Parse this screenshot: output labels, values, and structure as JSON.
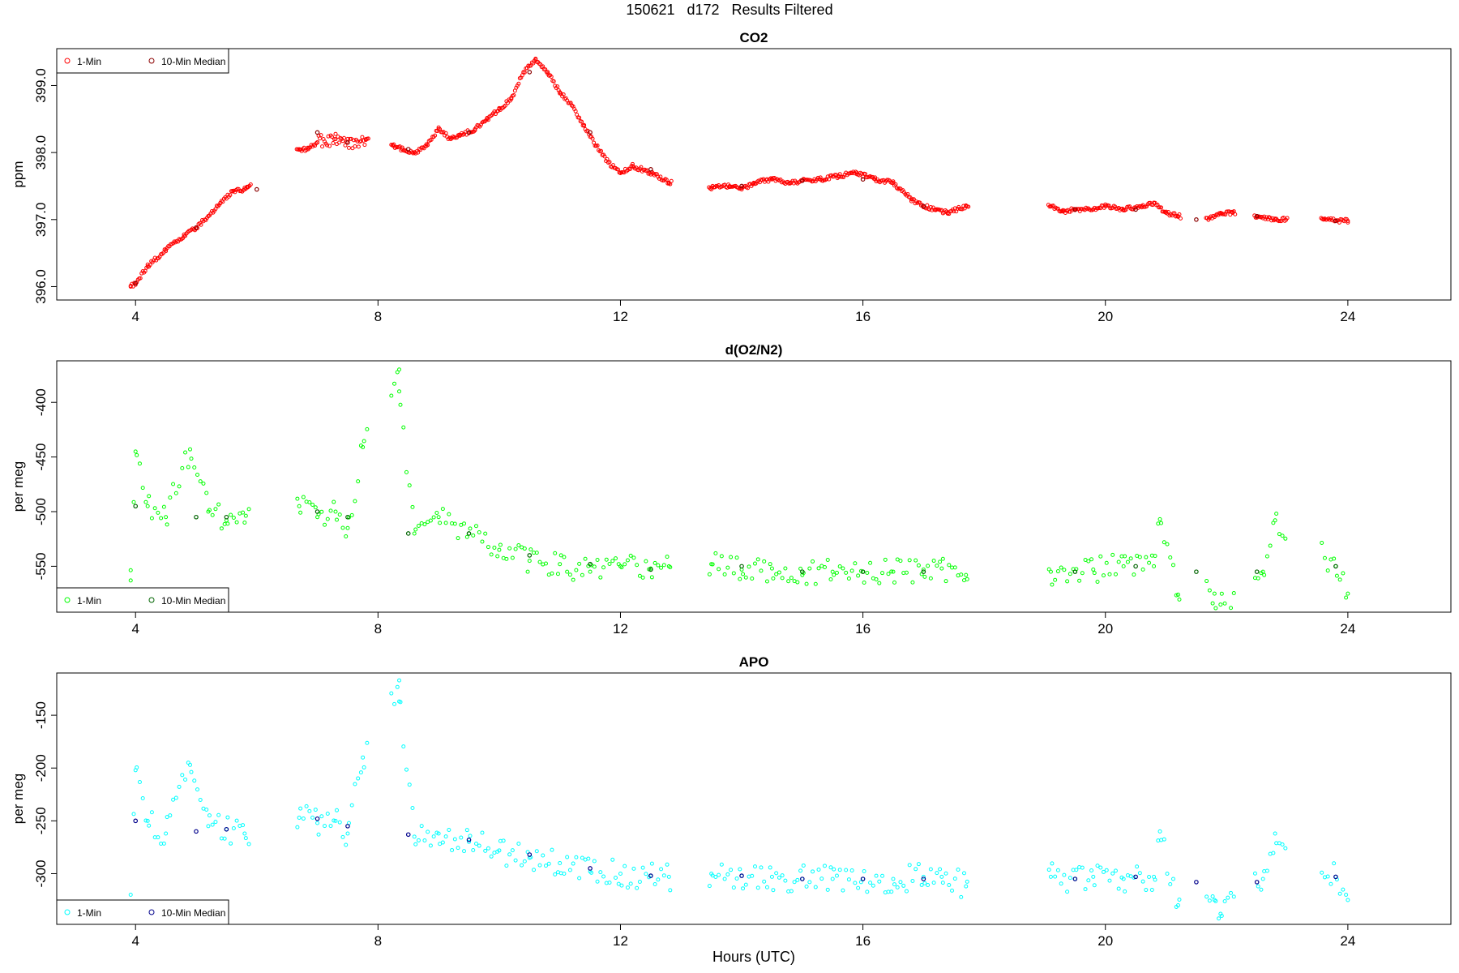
{
  "figure": {
    "suptitle": "150621   d172   Results Filtered",
    "xlabel": "Hours (UTC)"
  },
  "chart_data": [
    {
      "type": "scatter",
      "title": "CO2",
      "ylabel": "ppm",
      "xlim": [
        2.7,
        25.7
      ],
      "ylim": [
        395.8,
        399.55
      ],
      "xticks": [
        4,
        8,
        12,
        16,
        20,
        24
      ],
      "yticks": [
        396.0,
        397.0,
        398.0,
        399.0
      ],
      "ytick_labels": [
        "396.0",
        "397.0",
        "398.0",
        "399.0"
      ],
      "legend": {
        "position": "top-left",
        "entries": [
          "1-Min",
          "10-Min Median"
        ]
      },
      "colors": {
        "one_min": "#ff0000",
        "median": "#8b0000"
      },
      "series": [
        {
          "name": "1-Min",
          "x": [
            3.92,
            4.0,
            4.2,
            4.5,
            4.8,
            5.0,
            5.2,
            5.4,
            5.6,
            5.8,
            5.85,
            6.7,
            6.85,
            7.0,
            7.3,
            7.5,
            7.8,
            8.25,
            8.4,
            8.6,
            8.8,
            9.0,
            9.2,
            9.35,
            9.6,
            9.8,
            10.0,
            10.2,
            10.4,
            10.6,
            10.8,
            11.0,
            11.2,
            11.4,
            11.6,
            11.8,
            12.0,
            12.2,
            12.5,
            12.8,
            13.5,
            13.8,
            14.0,
            14.2,
            14.5,
            14.8,
            15.0,
            15.3,
            15.6,
            15.9,
            16.2,
            16.5,
            16.8,
            17.0,
            17.2,
            17.4,
            17.7,
            19.1,
            19.3,
            19.5,
            19.8,
            20.0,
            20.3,
            20.6,
            20.8,
            21.0,
            21.2,
            21.7,
            21.9,
            22.1,
            22.5,
            22.8,
            23.6,
            23.8,
            24.0
          ],
          "y": [
            396.0,
            396.05,
            396.3,
            396.55,
            396.75,
            396.88,
            397.05,
            397.25,
            397.42,
            397.45,
            397.48,
            398.05,
            398.05,
            398.15,
            398.2,
            398.15,
            398.2,
            398.1,
            398.05,
            398.0,
            398.1,
            398.35,
            398.2,
            398.25,
            398.35,
            398.5,
            398.65,
            398.8,
            399.2,
            399.4,
            399.2,
            398.9,
            398.7,
            398.4,
            398.1,
            397.85,
            397.7,
            397.8,
            397.7,
            397.55,
            397.48,
            397.5,
            397.45,
            397.55,
            397.6,
            397.55,
            397.58,
            397.6,
            397.65,
            397.7,
            397.6,
            397.55,
            397.3,
            397.2,
            397.15,
            397.1,
            397.2,
            397.2,
            397.12,
            397.15,
            397.15,
            397.2,
            397.15,
            397.2,
            397.25,
            397.1,
            397.05,
            397.0,
            397.1,
            397.1,
            397.05,
            397.0,
            397.0,
            396.98,
            396.98
          ]
        },
        {
          "name": "10-Min Median",
          "x": [
            4.0,
            5.0,
            6.0,
            7.0,
            7.5,
            8.5,
            9.5,
            10.5,
            11.5,
            12.5,
            14.0,
            15.0,
            16.0,
            17.0,
            19.5,
            20.5,
            21.5,
            22.5,
            23.8
          ],
          "y": [
            396.05,
            396.88,
            397.45,
            398.3,
            398.15,
            398.05,
            398.3,
            399.2,
            398.3,
            397.75,
            397.5,
            397.58,
            397.6,
            397.2,
            397.15,
            397.15,
            397.0,
            397.05,
            396.98
          ]
        }
      ]
    },
    {
      "type": "scatter",
      "title": "d(O2/N2)",
      "ylabel": "per meg",
      "xlim": [
        2.7,
        25.7
      ],
      "ylim": [
        -592,
        -362
      ],
      "xticks": [
        4,
        8,
        12,
        16,
        20,
        24
      ],
      "yticks": [
        -400,
        -450,
        -500,
        -550
      ],
      "ytick_labels": [
        "-400",
        "-450",
        "-500",
        "-550"
      ],
      "legend": {
        "position": "bottom-left",
        "entries": [
          "1-Min",
          "10-Min Median"
        ]
      },
      "colors": {
        "one_min": "#00ff00",
        "median": "#006400"
      },
      "series": [
        {
          "name": "1-Min",
          "x": [
            3.92,
            4.0,
            4.2,
            4.5,
            4.9,
            5.2,
            5.5,
            5.8,
            6.7,
            7.0,
            7.3,
            7.5,
            7.75,
            8.35,
            8.35,
            8.6,
            9.0,
            9.5,
            10.0,
            10.5,
            11.0,
            11.5,
            12.0,
            12.5,
            12.8,
            13.5,
            14.0,
            14.5,
            15.0,
            15.5,
            16.0,
            16.5,
            17.0,
            17.3,
            17.7,
            19.1,
            19.5,
            19.8,
            20.3,
            20.8,
            20.9,
            21.2,
            21.8,
            21.9,
            22.6,
            22.8,
            23.8,
            24.0
          ],
          "y": [
            -563,
            -445,
            -495,
            -505,
            -443,
            -500,
            -508,
            -510,
            -495,
            -505,
            -500,
            -515,
            -441,
            -370,
            -390,
            -520,
            -505,
            -520,
            -535,
            -545,
            -548,
            -555,
            -550,
            -552,
            -550,
            -548,
            -553,
            -552,
            -558,
            -555,
            -555,
            -555,
            -553,
            -552,
            -558,
            -555,
            -555,
            -553,
            -550,
            -550,
            -507,
            -576,
            -575,
            -585,
            -555,
            -508,
            -550,
            -575
          ]
        },
        {
          "name": "10-Min Median",
          "x": [
            4.0,
            5.0,
            5.5,
            7.0,
            7.5,
            8.5,
            9.5,
            10.5,
            11.5,
            12.5,
            14.0,
            15.0,
            16.0,
            17.0,
            19.5,
            20.5,
            21.5,
            22.5,
            23.8
          ],
          "y": [
            -495,
            -505,
            -505,
            -500,
            -505,
            -520,
            -520,
            -540,
            -548,
            -553,
            -550,
            -555,
            -555,
            -555,
            -555,
            -550,
            -555,
            -555,
            -550
          ]
        }
      ]
    },
    {
      "type": "scatter",
      "title": "APO",
      "ylabel": "per meg",
      "xlim": [
        2.7,
        25.7
      ],
      "ylim": [
        -348,
        -110
      ],
      "xticks": [
        4,
        8,
        12,
        16,
        20,
        24
      ],
      "yticks": [
        -150,
        -200,
        -250,
        -300
      ],
      "ytick_labels": [
        "-150",
        "-200",
        "-250",
        "-300"
      ],
      "legend": {
        "position": "bottom-left",
        "entries": [
          "1-Min",
          "10-Min Median"
        ]
      },
      "colors": {
        "one_min": "#00ffff",
        "median": "#00008b"
      },
      "series": [
        {
          "name": "1-Min",
          "x": [
            3.92,
            4.0,
            4.2,
            4.5,
            4.9,
            5.2,
            5.5,
            5.8,
            6.7,
            7.0,
            7.3,
            7.5,
            7.75,
            8.35,
            8.35,
            8.6,
            9.0,
            9.5,
            10.0,
            10.5,
            11.0,
            11.5,
            12.0,
            12.5,
            12.8,
            13.5,
            14.0,
            14.5,
            15.0,
            15.5,
            16.0,
            16.5,
            17.0,
            17.3,
            17.7,
            19.1,
            19.5,
            19.8,
            20.3,
            20.8,
            20.9,
            21.2,
            21.8,
            21.9,
            22.6,
            22.8,
            23.8,
            24.0
          ],
          "y": [
            -320,
            -202,
            -250,
            -262,
            -197,
            -255,
            -258,
            -262,
            -247,
            -252,
            -250,
            -262,
            -190,
            -117,
            -137,
            -265,
            -262,
            -270,
            -278,
            -285,
            -290,
            -298,
            -300,
            -302,
            -303,
            -300,
            -302,
            -303,
            -305,
            -305,
            -305,
            -305,
            -303,
            -303,
            -312,
            -303,
            -305,
            -303,
            -305,
            -303,
            -260,
            -330,
            -325,
            -338,
            -305,
            -262,
            -303,
            -325
          ]
        },
        {
          "name": "10-Min Median",
          "x": [
            4.0,
            5.0,
            5.5,
            7.0,
            7.5,
            8.5,
            9.5,
            10.5,
            11.5,
            12.5,
            14.0,
            15.0,
            16.0,
            17.0,
            19.5,
            20.5,
            21.5,
            22.5,
            23.8
          ],
          "y": [
            -250,
            -260,
            -258,
            -248,
            -255,
            -263,
            -268,
            -282,
            -295,
            -302,
            -302,
            -305,
            -305,
            -305,
            -305,
            -303,
            -308,
            -308,
            -303
          ]
        }
      ]
    }
  ]
}
